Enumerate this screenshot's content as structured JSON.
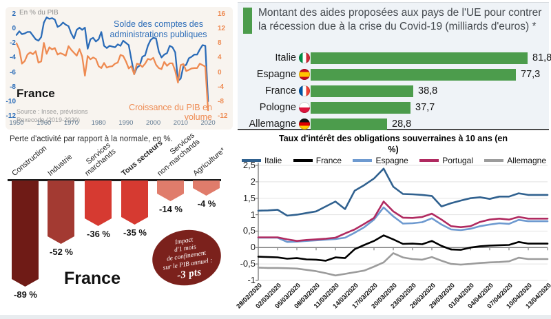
{
  "accent_colors": {
    "green": "#4c9c4c",
    "blue": "#2b6cb8",
    "orange": "#ee8a51",
    "dark_red": "#7b211c"
  },
  "chart_data": [
    {
      "id": "public-accounts-france",
      "type": "line",
      "unit": "En % du PIB",
      "country": "France",
      "source_line1": "Source : Insee, prévisions",
      "source_line2": "Rexecode (2019-2020)",
      "x_start": 1950,
      "x_ticks": [
        "1950",
        "1960",
        "1970",
        "1980",
        "1990",
        "2000",
        "2010",
        "2020"
      ],
      "left_axis": {
        "min": -12,
        "max": 2,
        "ticks": [
          "2",
          "0",
          "-2",
          "-4",
          "-6",
          "-8",
          "-10",
          "-12"
        ]
      },
      "right_axis": {
        "min": -12,
        "max": 16,
        "ticks": [
          "16",
          "12",
          "8",
          "4",
          "0",
          "-4",
          "-8",
          "-12"
        ]
      },
      "series": [
        {
          "name": "Solde des comptes des administrations publiques",
          "axis": "left",
          "color": "#2b6cb8",
          "values": [
            -0.9,
            -0.4,
            -0.8,
            -0.7,
            -0.5,
            -0.5,
            -1.0,
            -1.5,
            -1.7,
            -1.2,
            0.8,
            1.5,
            1.3,
            1.4,
            1.2,
            0.2,
            0.4,
            0.8,
            0.5,
            0.3,
            -0.7,
            -1.4,
            -0.2,
            0.1,
            -0.2,
            0.1,
            -2.8,
            -1.5,
            -1.3,
            -1.8,
            -1.5,
            -0.5,
            -2.4,
            -2.7,
            -2.4,
            -2.5,
            -2.6,
            -2.2,
            -2.4,
            -1.7,
            -2.0,
            -2.3,
            -4.3,
            -6.3,
            -5.4,
            -5.1,
            -3.9,
            -3.7,
            -2.4,
            -1.6,
            -1.3,
            -1.4,
            -3.2,
            -4.0,
            -3.6,
            -3.4,
            -2.4,
            -2.6,
            -3.3,
            -7.2,
            -6.9,
            -5.2,
            -5.0,
            -4.1,
            -3.9,
            -3.6,
            -3.6,
            -2.9,
            -2.3,
            -2.4,
            -10.0
          ]
        },
        {
          "name": "Croissance du PIB en volume",
          "axis": "right",
          "color": "#ee8a51",
          "values": [
            7.9,
            6.2,
            2.3,
            3.0,
            4.8,
            5.4,
            4.9,
            5.7,
            2.6,
            2.9,
            8.0,
            5.0,
            6.8,
            6.2,
            6.6,
            4.8,
            5.2,
            4.9,
            4.5,
            7.1,
            6.1,
            5.3,
            4.5,
            6.3,
            4.3,
            -1.0,
            4.4,
            3.5,
            4.0,
            3.6,
            1.6,
            1.1,
            2.5,
            1.2,
            1.5,
            1.6,
            2.3,
            2.6,
            4.7,
            4.4,
            2.9,
            1.0,
            1.6,
            -0.6,
            2.3,
            2.1,
            1.4,
            2.3,
            3.6,
            3.4,
            3.9,
            2.0,
            1.1,
            0.8,
            2.8,
            1.7,
            2.4,
            2.4,
            0.3,
            -2.9,
            1.9,
            2.2,
            0.3,
            0.6,
            1.0,
            1.1,
            1.1,
            2.3,
            1.9,
            1.5,
            -10.5
          ]
        }
      ]
    },
    {
      "id": "eu-covid-aid",
      "type": "bar",
      "title": "Montant des aides proposées aux pays de l'UE pour contrer la récession due à la crise du Covid-19 (milliards d'euros) *",
      "categories": [
        "Italie",
        "Espagne",
        "France",
        "Pologne",
        "Allemagne"
      ],
      "flags": [
        "italie",
        "espagne",
        "france",
        "pologne",
        "allemagne"
      ],
      "values": [
        81.8,
        77.3,
        38.8,
        37.7,
        28.8
      ],
      "value_labels": [
        "81,8",
        "77,3",
        "38,8",
        "37,7",
        "28,8"
      ],
      "bar_color": "#4c9c4c"
    },
    {
      "id": "activity-loss-france",
      "type": "bar",
      "title": "Perte d'activité par rapport à la normale, en %.",
      "categories": [
        "Construction",
        "Industrie",
        "Services marchands",
        "Tous secteurs",
        "Services non-marchands",
        "Agriculture*"
      ],
      "category_lines": [
        [
          "Construction"
        ],
        [
          "Industrie"
        ],
        [
          "Services",
          "marchands"
        ],
        [
          "Tous secteurs"
        ],
        [
          "Services",
          "non-marchands"
        ],
        [
          "Agriculture*"
        ]
      ],
      "bold_category_index": 3,
      "values": [
        -89,
        -52,
        -36,
        -35,
        -14,
        -4
      ],
      "value_labels": [
        "-89 %",
        "-52 %",
        "-36 %",
        "-35 %",
        "-14 %",
        "-4 %"
      ],
      "bar_colors": [
        "#6f1b16",
        "#a33a32",
        "#d63a31",
        "#d63a31",
        "#e07c6b",
        "#e07c6b"
      ],
      "note_lines": [
        "Impact",
        "d'1 mois",
        "de confinement",
        "sur le PIB annuel :"
      ],
      "note_value": "-3 pts",
      "country": "France"
    },
    {
      "id": "sovereign-bond-rates",
      "type": "line",
      "title": "Taux d'intérêt des obligations souverraines à 10 ans (en %)",
      "ylim": [
        -1,
        2.5
      ],
      "y_ticks": [
        "2,5",
        "2",
        "1,5",
        "1",
        "0,5",
        "0",
        "-0,5",
        "-1"
      ],
      "y_tick_values": [
        2.5,
        2,
        1.5,
        1,
        0.5,
        0,
        -0.5,
        -1
      ],
      "x_ticks": [
        "28/02/2020",
        "02/03/2020",
        "05/03/2020",
        "08/03/2020",
        "11/03/2020",
        "14/03/2020",
        "17/03/2020",
        "20/03/2020",
        "23/03/2020",
        "26/03/2020",
        "29/03/2020",
        "01/04/2020",
        "04/04/2020",
        "07/04/2020",
        "10/04/2020",
        "13/04/2020"
      ],
      "series": [
        {
          "name": "Italie",
          "color": "#30618f",
          "values": [
            1.12,
            1.13,
            1.15,
            0.97,
            1.0,
            1.05,
            1.1,
            1.25,
            1.4,
            1.17,
            1.73,
            1.9,
            2.1,
            2.4,
            1.85,
            1.63,
            1.62,
            1.6,
            1.57,
            1.25,
            1.35,
            1.43,
            1.5,
            1.53,
            1.48,
            1.55,
            1.55,
            1.65,
            1.6,
            1.6,
            1.6
          ]
        },
        {
          "name": "France",
          "color": "#000000",
          "values": [
            -0.28,
            -0.29,
            -0.3,
            -0.34,
            -0.32,
            -0.36,
            -0.37,
            -0.4,
            -0.3,
            -0.32,
            -0.05,
            0.08,
            0.2,
            0.37,
            0.25,
            0.11,
            0.12,
            0.1,
            0.2,
            0.05,
            -0.06,
            -0.07,
            0.0,
            0.04,
            0.06,
            0.07,
            0.08,
            0.17,
            0.12,
            0.12,
            0.12
          ]
        },
        {
          "name": "Espagne",
          "color": "#6e9ad0",
          "values": [
            0.3,
            0.3,
            0.3,
            0.17,
            0.18,
            0.2,
            0.22,
            0.24,
            0.26,
            0.3,
            0.45,
            0.62,
            0.85,
            1.22,
            0.95,
            0.73,
            0.74,
            0.77,
            0.89,
            0.7,
            0.55,
            0.53,
            0.57,
            0.65,
            0.7,
            0.74,
            0.72,
            0.84,
            0.8,
            0.8,
            0.8
          ]
        },
        {
          "name": "Portugal",
          "color": "#b02a60",
          "values": [
            0.31,
            0.31,
            0.31,
            0.25,
            0.2,
            0.23,
            0.25,
            0.27,
            0.3,
            0.43,
            0.55,
            0.72,
            0.9,
            1.4,
            1.1,
            0.91,
            0.9,
            0.93,
            1.03,
            0.85,
            0.65,
            0.62,
            0.65,
            0.78,
            0.85,
            0.88,
            0.85,
            0.93,
            0.88,
            0.88,
            0.88
          ]
        },
        {
          "name": "Allemagne",
          "color": "#9c9c9c",
          "values": [
            -0.61,
            -0.62,
            -0.62,
            -0.63,
            -0.64,
            -0.68,
            -0.72,
            -0.78,
            -0.85,
            -0.8,
            -0.75,
            -0.7,
            -0.58,
            -0.45,
            -0.17,
            -0.3,
            -0.35,
            -0.37,
            -0.29,
            -0.4,
            -0.5,
            -0.52,
            -0.5,
            -0.47,
            -0.45,
            -0.44,
            -0.42,
            -0.31,
            -0.35,
            -0.35,
            -0.35
          ]
        }
      ]
    }
  ]
}
